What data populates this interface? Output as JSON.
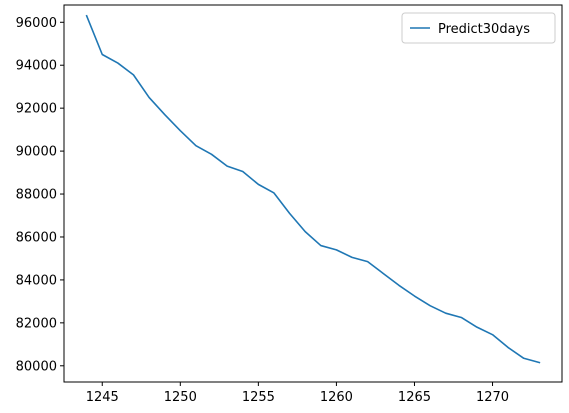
{
  "chart_data": {
    "type": "line",
    "title": "",
    "xlabel": "",
    "ylabel": "",
    "x": [
      1244,
      1245,
      1246,
      1247,
      1248,
      1249,
      1250,
      1251,
      1252,
      1253,
      1254,
      1255,
      1256,
      1257,
      1258,
      1259,
      1260,
      1261,
      1262,
      1263,
      1264,
      1265,
      1266,
      1267,
      1268,
      1269,
      1270,
      1271,
      1272,
      1273
    ],
    "series": [
      {
        "name": "Predict30days",
        "color": "#1f77b4",
        "values": [
          96300,
          94500,
          94100,
          93550,
          92500,
          91700,
          90950,
          90250,
          89850,
          89300,
          89050,
          88450,
          88050,
          87100,
          86250,
          85600,
          85400,
          85050,
          84850,
          84300,
          83750,
          83250,
          82800,
          82450,
          82250,
          81800,
          81450,
          80850,
          80350,
          80150
        ]
      }
    ],
    "xlim": [
      1242.55,
      1274.45
    ],
    "ylim": [
      79245,
      96805
    ],
    "xticks": [
      1245,
      1250,
      1255,
      1260,
      1265,
      1270
    ],
    "xtick_labels": [
      "1245",
      "1250",
      "1255",
      "1260",
      "1265",
      "1270"
    ],
    "yticks": [
      80000,
      82000,
      84000,
      86000,
      88000,
      90000,
      92000,
      94000,
      96000
    ],
    "ytick_labels": [
      "80000",
      "82000",
      "84000",
      "86000",
      "88000",
      "90000",
      "92000",
      "94000",
      "96000"
    ],
    "grid": false,
    "legend": "top-right"
  }
}
